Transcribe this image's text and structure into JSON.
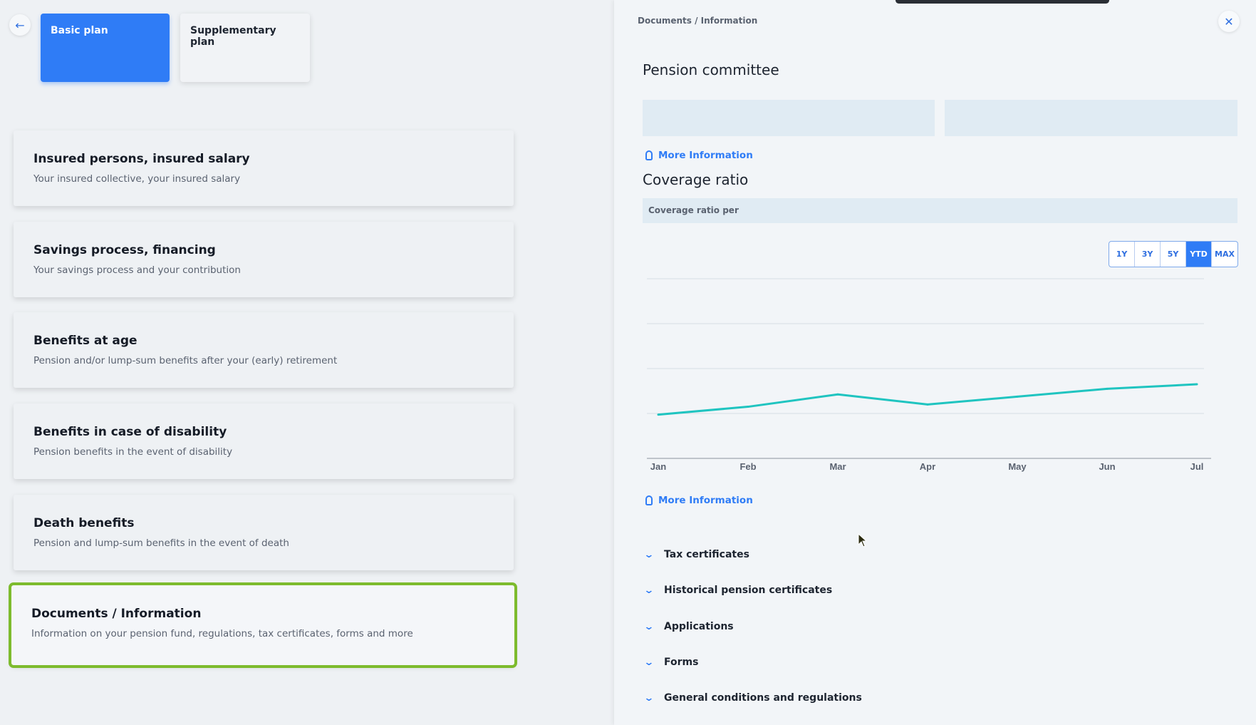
{
  "left": {
    "back_icon": "arrow-left-icon",
    "tabs": [
      {
        "label": "Basic plan",
        "active": true
      },
      {
        "label": "Supplementary plan",
        "active": false
      }
    ],
    "cards": [
      {
        "title": "Insured persons, insured salary",
        "subtitle": "Your insured collective, your insured salary"
      },
      {
        "title": "Savings process, financing",
        "subtitle": "Your savings process and your contribution"
      },
      {
        "title": "Benefits at age",
        "subtitle": "Pension and/or lump-sum benefits after your (early) retirement"
      },
      {
        "title": "Benefits in case of disability",
        "subtitle": "Pension benefits in the event of disability"
      },
      {
        "title": "Death benefits",
        "subtitle": "Pension and lump-sum benefits in the event of death"
      },
      {
        "title": "Documents / Information",
        "subtitle": "Information on your pension fund, regulations, tax certificates, forms and more",
        "selected": true
      }
    ]
  },
  "right": {
    "breadcrumb": "Documents / Information",
    "close_icon": "close-icon",
    "pension_committee_title": "Pension committee",
    "more_info_label": "More Information",
    "coverage_title": "Coverage ratio",
    "coverage_ratio_label": "Coverage ratio per",
    "ranges": [
      {
        "label": "1Y",
        "active": false
      },
      {
        "label": "3Y",
        "active": false
      },
      {
        "label": "5Y",
        "active": false
      },
      {
        "label": "YTD",
        "active": true
      },
      {
        "label": "MAX",
        "active": false
      }
    ],
    "accordion": [
      "Tax certificates",
      "Historical pension certificates",
      "Applications",
      "Forms",
      "General conditions and regulations"
    ]
  },
  "colors": {
    "accent": "#2f7cf6",
    "line": "#1fc4c0",
    "selected_outline": "#7dbb2d"
  },
  "chart_data": {
    "type": "line",
    "categories": [
      "Jan",
      "Feb",
      "Mar",
      "Apr",
      "May",
      "Jun",
      "Jul"
    ],
    "series": [
      {
        "values": [
          0.9,
          1.6,
          2.7,
          1.8,
          2.5,
          3.2,
          3.6
        ]
      }
    ],
    "ylim": [
      -3,
      13
    ],
    "grid": true
  }
}
